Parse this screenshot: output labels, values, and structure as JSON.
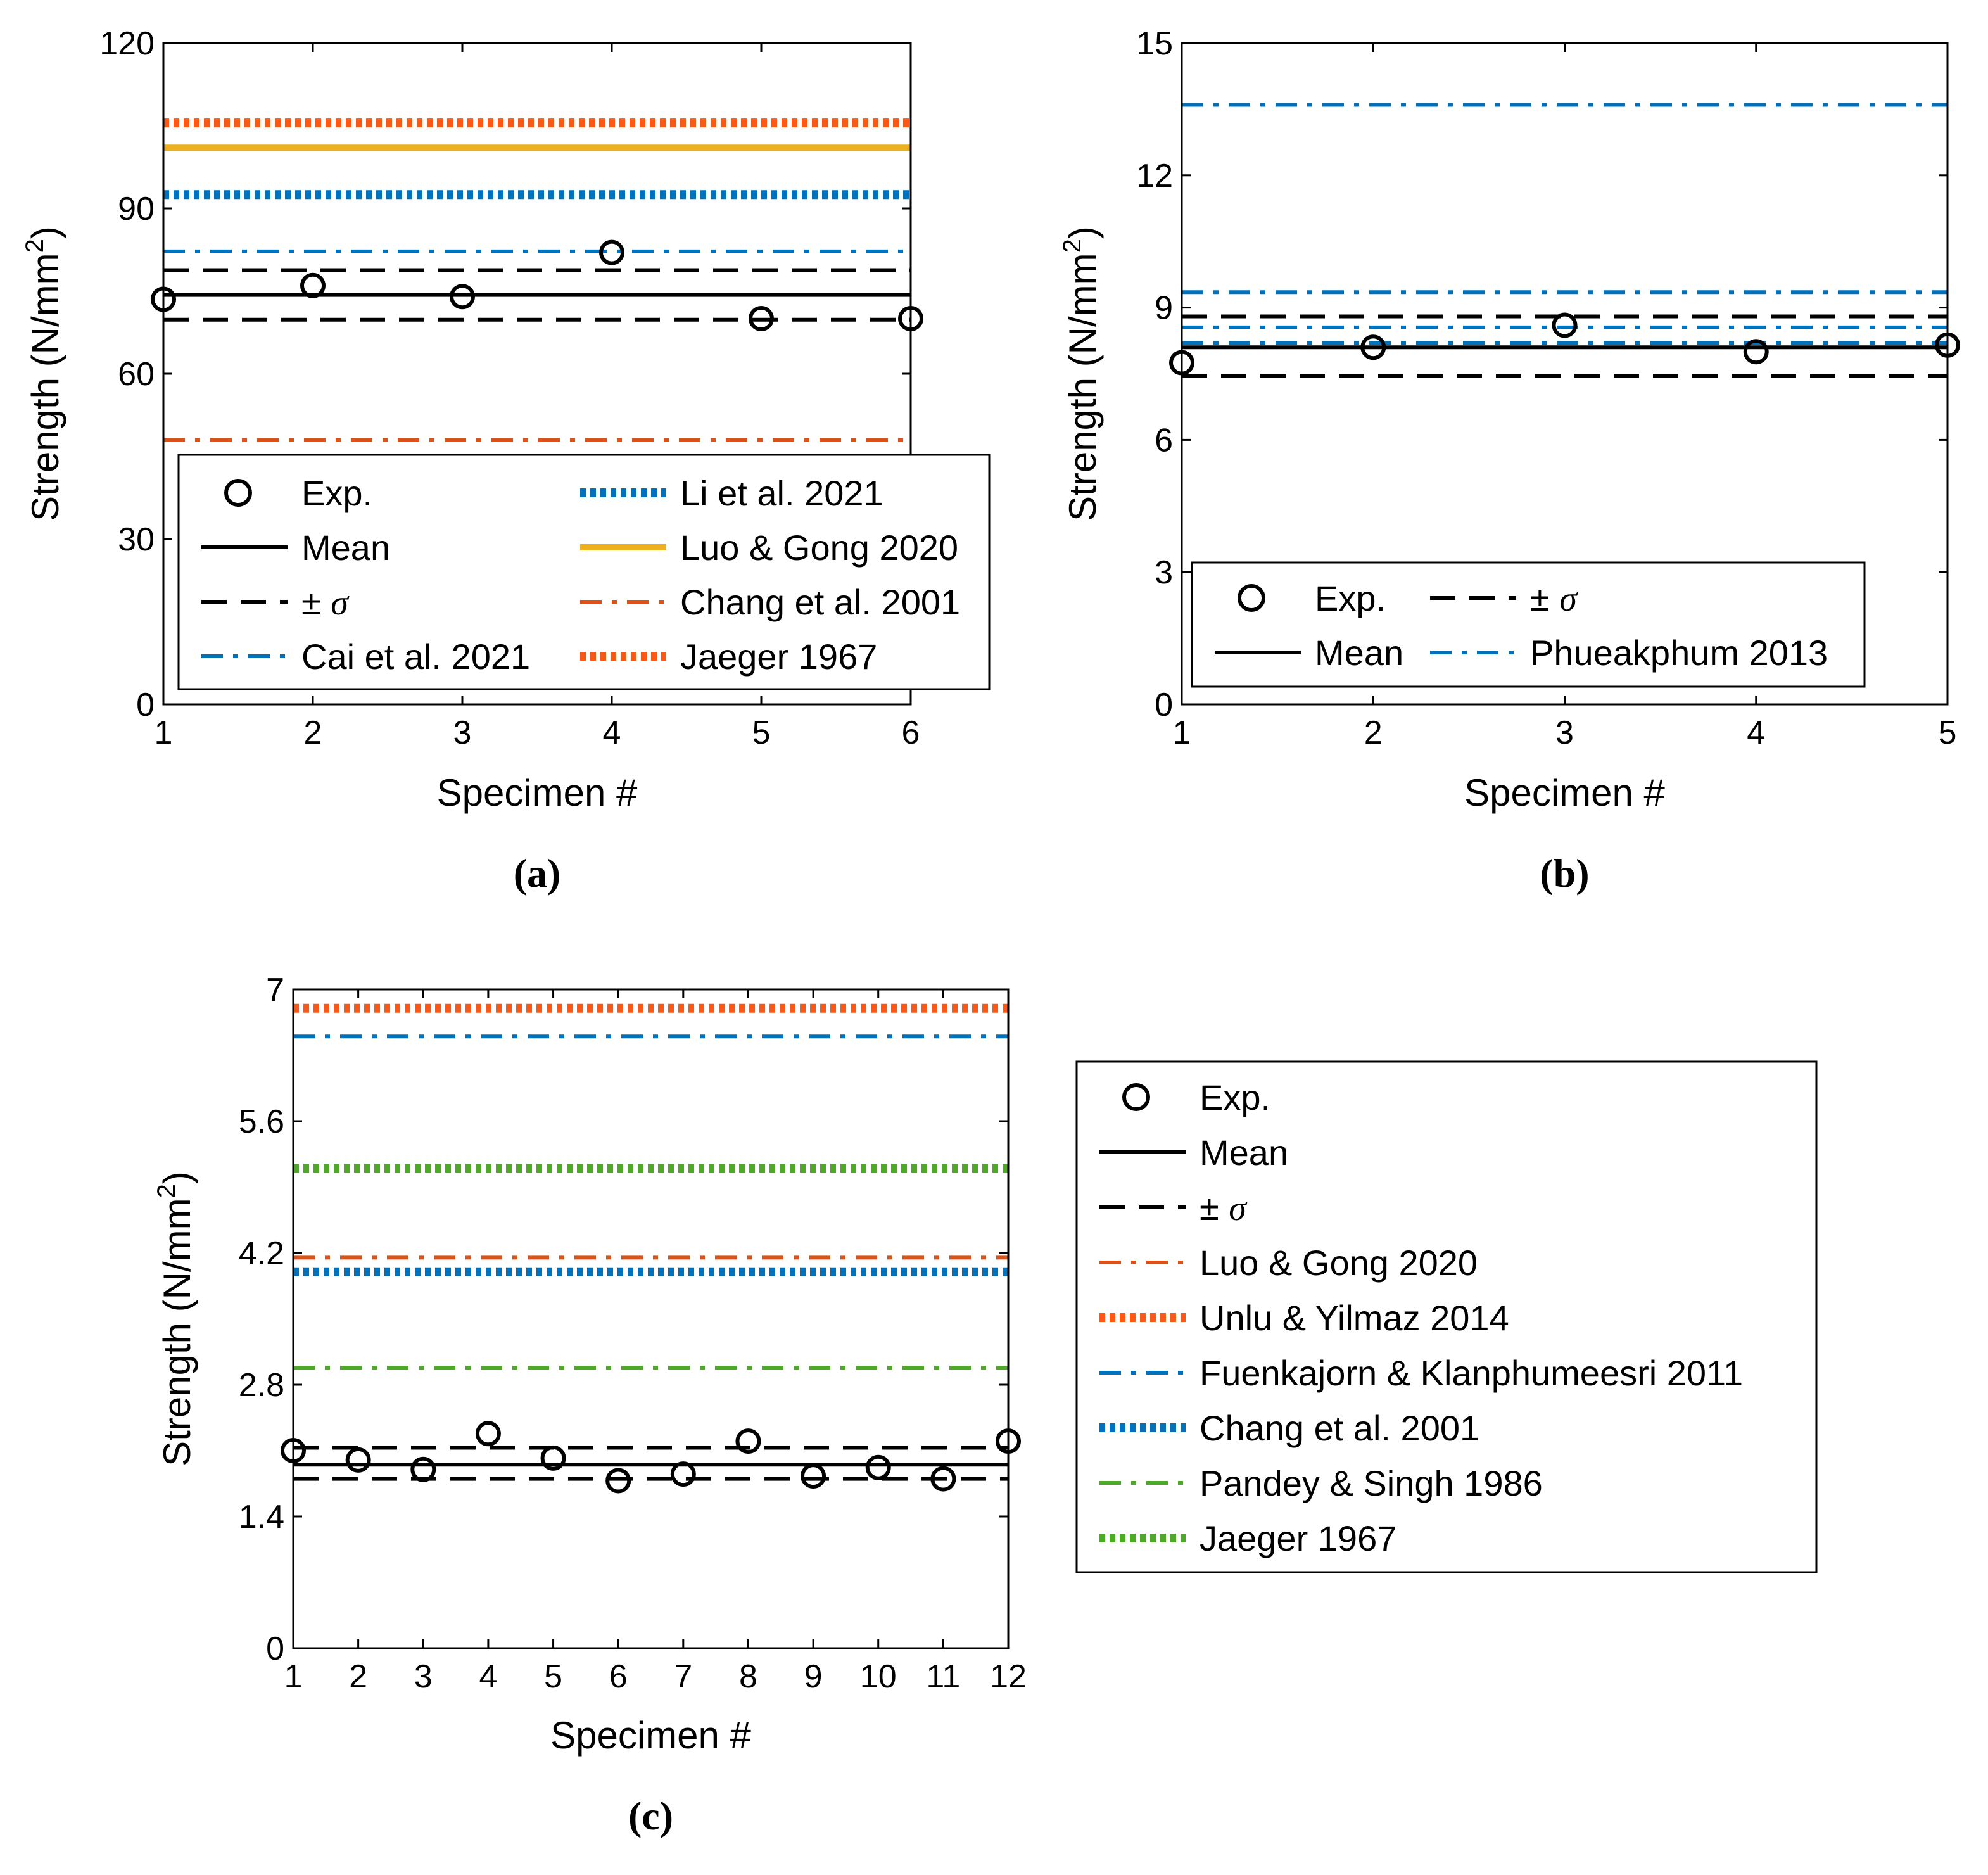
{
  "chart_data": [
    {
      "type": "scatter",
      "panel_label": "(a)",
      "xlabel": "Specimen #",
      "ylabel": "Strength (N/mm2)",
      "ylabel_parts": [
        "Strength (N/mm",
        "2",
        ")"
      ],
      "xlim": [
        1,
        6
      ],
      "ylim": [
        0,
        120
      ],
      "x_ticks": [
        "1",
        "2",
        "3",
        "4",
        "5",
        "6"
      ],
      "y_ticks": [
        "0",
        "30",
        "60",
        "90",
        "120"
      ],
      "experimental": {
        "name": "Exp.",
        "x": [
          1,
          2,
          3,
          4,
          5,
          6
        ],
        "y": [
          73.5,
          76,
          74,
          82,
          70,
          70
        ]
      },
      "mean": {
        "name": "Mean",
        "value": 74.3
      },
      "sigma": {
        "name": "± σ",
        "pm": "±",
        "symbol": "σ",
        "lower": 69.8,
        "upper": 78.8
      },
      "models": [
        {
          "name": "Cai et al. 2021",
          "value": 82.2,
          "style": "dashdot",
          "color": "#0072BD"
        },
        {
          "name": "Li et al. 2021",
          "value": 92.5,
          "style": "dotted",
          "color": "#0072BD"
        },
        {
          "name": "Luo & Gong 2020",
          "value": 101,
          "style": "solid",
          "color": "#EDB120"
        },
        {
          "name": "Chang et al. 2001",
          "value": 48,
          "style": "dashdot",
          "color": "#D95319"
        },
        {
          "name": "Jaeger 1967",
          "value": 105.5,
          "style": "dotted",
          "color": "#FC5716"
        }
      ],
      "legend": {
        "columns": 2,
        "placement": "lower-center"
      }
    },
    {
      "type": "scatter",
      "panel_label": "(b)",
      "xlabel": "Specimen #",
      "ylabel": "Strength (N/mm2)",
      "ylabel_parts": [
        "Strength (N/mm",
        "2",
        ")"
      ],
      "xlim": [
        1,
        5
      ],
      "ylim": [
        0,
        15
      ],
      "x_ticks": [
        "1",
        "2",
        "3",
        "4",
        "5"
      ],
      "y_ticks": [
        "0",
        "3",
        "6",
        "9",
        "12",
        "15"
      ],
      "experimental": {
        "name": "Exp.",
        "x": [
          1,
          2,
          3,
          4,
          5
        ],
        "y": [
          7.75,
          8.1,
          8.6,
          8.0,
          8.15
        ]
      },
      "mean": {
        "name": "Mean",
        "value": 8.1
      },
      "sigma": {
        "name": "± σ",
        "pm": "±",
        "symbol": "σ",
        "lower": 7.45,
        "upper": 8.8
      },
      "models": [
        {
          "name": "Phueakphum 2013",
          "values": [
            13.6,
            9.35,
            8.55,
            8.2
          ],
          "style": "dashdot",
          "color": "#0072BD"
        }
      ],
      "legend": {
        "columns": 2,
        "placement": "lower-center"
      }
    },
    {
      "type": "scatter",
      "panel_label": "(c)",
      "xlabel": "Specimen #",
      "ylabel": "Strength (N/mm2)",
      "ylabel_parts": [
        "Strength (N/mm",
        "2",
        ")"
      ],
      "xlim": [
        1,
        12
      ],
      "ylim": [
        0,
        7
      ],
      "x_ticks": [
        "1",
        "2",
        "3",
        "4",
        "5",
        "6",
        "7",
        "8",
        "9",
        "10",
        "11",
        "12"
      ],
      "y_ticks": [
        "0",
        "1.4",
        "2.8",
        "4.2",
        "5.6",
        "7"
      ],
      "experimental": {
        "name": "Exp.",
        "x": [
          1,
          2,
          3,
          4,
          5,
          6,
          7,
          8,
          9,
          10,
          11,
          12
        ],
        "y": [
          2.1,
          2.0,
          1.9,
          2.28,
          2.02,
          1.78,
          1.85,
          2.2,
          1.83,
          1.92,
          1.8,
          2.2
        ]
      },
      "mean": {
        "name": "Mean",
        "value": 1.95
      },
      "sigma": {
        "name": "± σ",
        "pm": "±",
        "symbol": "σ",
        "lower": 1.8,
        "upper": 2.13
      },
      "models": [
        {
          "name": "Luo & Gong 2020",
          "value": 4.15,
          "style": "dashdot",
          "color": "#D95319"
        },
        {
          "name": "Unlu & Yilmaz 2014",
          "value": 6.8,
          "style": "dotted",
          "color": "#FC5716"
        },
        {
          "name": "Fuenkajorn & Klanphumeesri 2011",
          "value": 6.5,
          "style": "dashdot",
          "color": "#0072BD"
        },
        {
          "name": "Chang et al. 2001",
          "value": 4.0,
          "style": "dotted",
          "color": "#0072BD"
        },
        {
          "name": "Pandey & Singh 1986",
          "value": 2.98,
          "style": "dashdot",
          "color": "#4DAA27"
        },
        {
          "name": "Jaeger 1967",
          "value": 5.1,
          "style": "dotted",
          "color": "#4DAA27"
        }
      ],
      "legend": {
        "columns": 1,
        "placement": "outside-right"
      }
    }
  ]
}
